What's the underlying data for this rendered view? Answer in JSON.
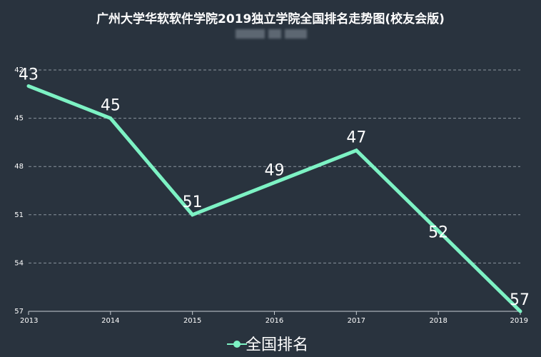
{
  "chart_data": {
    "type": "line",
    "title": "广州大学华软软件学院2019独立学院全国排名走势图(校友会版)",
    "x": [
      "2013",
      "2014",
      "2015",
      "2016",
      "2017",
      "2018",
      "2019"
    ],
    "series": [
      {
        "name": "全国排名",
        "values": [
          43,
          45,
          51,
          49,
          47,
          52,
          57
        ],
        "color": "#7df2c4"
      }
    ],
    "y_ticks": [
      "42",
      "45",
      "48",
      "51",
      "54",
      "57"
    ],
    "ylim": [
      42,
      57
    ],
    "y_inverted": true,
    "grid": true,
    "legend_position": "bottom-center"
  },
  "colors": {
    "background": "#29333e",
    "grid": "#8a949e",
    "axis": "#c8ced4",
    "text": "#ffffff"
  }
}
